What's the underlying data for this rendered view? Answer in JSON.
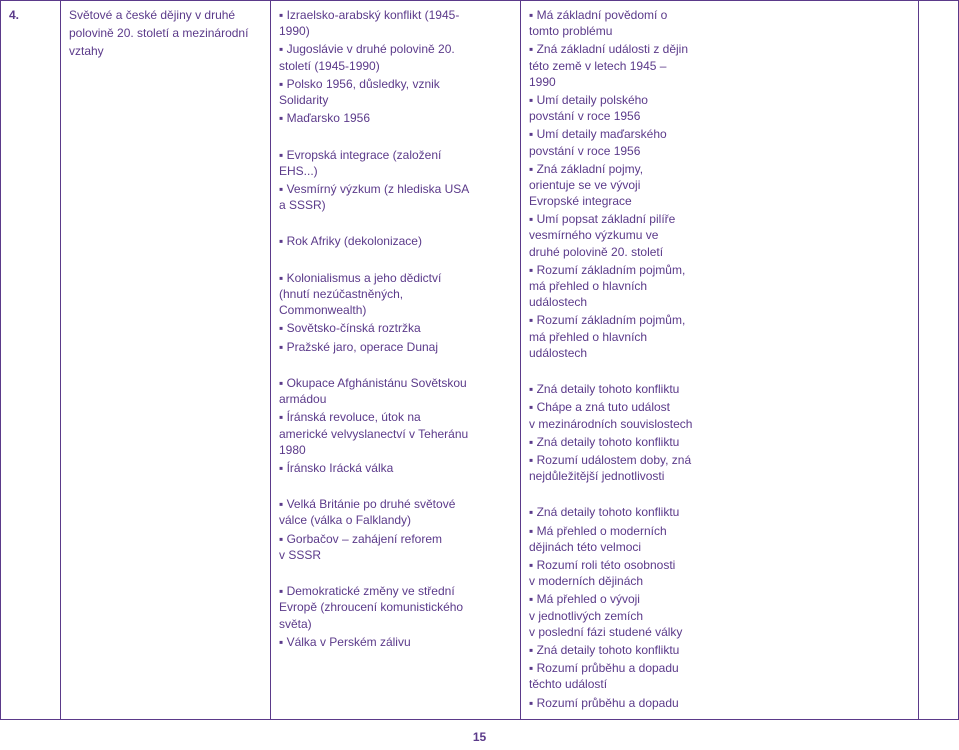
{
  "row": {
    "number": "4.",
    "topic_lines": [
      "Světové a české dějiny v druhé",
      "polovině 20. století a mezinárodní",
      "vztahy"
    ],
    "content_blocks": [
      [
        "▪ Izraelsko-arabský konflikt (1945-",
        "1990)"
      ],
      [
        "▪ Jugoslávie v druhé polovině 20.",
        "století (1945-1990)"
      ],
      [
        "▪ Polsko 1956, důsledky, vznik",
        "Solidarity"
      ],
      [
        "▪ Maďarsko 1956"
      ],
      [
        " "
      ],
      [
        "▪ Evropská integrace (založení",
        "EHS...)"
      ],
      [
        "▪ Vesmírný výzkum (z hlediska USA",
        "a SSSR)"
      ],
      [
        " "
      ],
      [
        "▪ Rok Afriky (dekolonizace)"
      ],
      [
        " "
      ],
      [
        "▪ Kolonialismus a jeho dědictví",
        "(hnutí nezúčastněných,",
        "Commonwealth)"
      ],
      [
        "▪ Sovětsko-čínská roztržka"
      ],
      [
        "▪ Pražské jaro, operace Dunaj"
      ],
      [
        " "
      ],
      [
        "▪ Okupace Afghánistánu Sovětskou",
        "armádou"
      ],
      [
        "▪ Íránská revoluce, útok na",
        "americké velvyslanectví v Teheránu",
        "1980"
      ],
      [
        "▪ Íránsko Irácká válka"
      ],
      [
        " "
      ],
      [
        "▪ Velká Británie po druhé světové",
        "válce (válka o Falklandy)"
      ],
      [
        "▪ Gorbačov – zahájení reforem",
        "v SSSR"
      ],
      [
        " "
      ],
      [
        "▪ Demokratické změny ve střední",
        "Evropě (zhroucení komunistického",
        "světa)"
      ],
      [
        "▪ Válka v Perském zálivu"
      ]
    ],
    "outcomes_blocks": [
      [
        "▪ Má základní povědomí o",
        "tomto problému"
      ],
      [
        "▪ Zná základní události z dějin",
        "této země v letech 1945 –",
        "1990"
      ],
      [
        "▪ Umí detaily polského",
        "povstání v roce 1956"
      ],
      [
        "▪ Umí detaily maďarského",
        "povstání v roce 1956"
      ],
      [
        "▪ Zná základní pojmy,",
        "orientuje se ve vývoji",
        "Evropské integrace"
      ],
      [
        "▪ Umí popsat základní pilíře",
        "vesmírného výzkumu ve",
        "druhé polovině 20. století"
      ],
      [
        "▪ Rozumí základním pojmům,",
        "má přehled o hlavních",
        "událostech"
      ],
      [
        "▪ Rozumí základním pojmům,",
        "má přehled o hlavních",
        "událostech"
      ],
      [
        " "
      ],
      [
        "▪ Zná detaily tohoto konfliktu"
      ],
      [
        "▪ Chápe a zná tuto událost",
        "v mezinárodních souvislostech"
      ],
      [
        "▪ Zná detaily tohoto konfliktu"
      ],
      [
        "▪ Rozumí událostem doby, zná",
        "nejdůležitější jednotlivosti"
      ],
      [
        " "
      ],
      [
        "▪ Zná detaily tohoto konfliktu"
      ],
      [
        "▪ Má přehled o moderních",
        "dějinách této velmoci"
      ],
      [
        "▪ Rozumí roli této osobnosti",
        "v moderních dějinách"
      ],
      [
        "▪ Má přehled o vývoji",
        "v jednotlivých zemích",
        "v poslední fázi studené války"
      ],
      [
        "▪ Zná detaily tohoto konfliktu"
      ],
      [
        "▪ Rozumí průběhu a dopadu",
        "těchto událostí"
      ],
      [
        "▪ Rozumí průběhu a dopadu"
      ]
    ]
  },
  "page_number": "15",
  "colors": {
    "text": "#5b3a8a",
    "border": "#5b3a8a",
    "background": "#ffffff"
  }
}
